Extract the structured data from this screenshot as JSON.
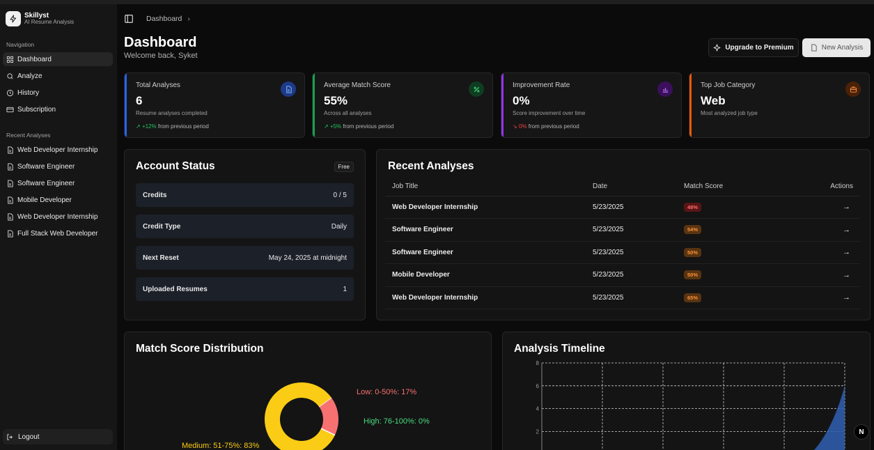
{
  "brand": {
    "name": "Skillyst",
    "subtitle": "AI Resume Analysis"
  },
  "sidebar": {
    "nav_label": "Navigation",
    "nav_items": [
      {
        "label": "Dashboard",
        "icon": "dashboard-grid-icon",
        "active": true
      },
      {
        "label": "Analyze",
        "icon": "search-icon"
      },
      {
        "label": "History",
        "icon": "history-icon"
      },
      {
        "label": "Subscription",
        "icon": "credit-card-icon"
      }
    ],
    "recent_label": "Recent Analyses",
    "recent_items": [
      "Web Developer Internship",
      "Software Engineer",
      "Software Engineer",
      "Mobile Developer",
      "Web Developer Internship",
      "Full Stack Web Developer"
    ],
    "logout": "Logout"
  },
  "header": {
    "breadcrumb": "Dashboard",
    "title": "Dashboard",
    "welcome": "Welcome back, Syket",
    "upgrade_label": "Upgrade to Premium",
    "new_analysis_label": "New Analysis"
  },
  "stats": [
    {
      "label": "Total Analyses",
      "value": "6",
      "desc": "Resume analyses completed",
      "change": "+12%",
      "change_suffix": "from previous period",
      "trend": "up",
      "accent": "#2563eb",
      "icon": "document-icon"
    },
    {
      "label": "Average Match Score",
      "value": "55%",
      "desc": "Across all analyses",
      "change": "+5%",
      "change_suffix": "from previous period",
      "trend": "up",
      "accent": "#16a34a",
      "icon": "percent-icon"
    },
    {
      "label": "Improvement Rate",
      "value": "0%",
      "desc": "Score improvement over time",
      "change": "0%",
      "change_suffix": "from previous period",
      "trend": "down",
      "accent": "#9333ea",
      "icon": "bar-chart-icon"
    },
    {
      "label": "Top Job Category",
      "value": "Web",
      "desc": "Most analyzed job type",
      "accent": "#ea580c",
      "icon": "briefcase-icon"
    }
  ],
  "account": {
    "title": "Account Status",
    "plan": "Free",
    "rows": [
      {
        "key": "Credits",
        "value": "0 / 5"
      },
      {
        "key": "Credit Type",
        "value": "Daily"
      },
      {
        "key": "Next Reset",
        "value": "May 24, 2025 at midnight"
      },
      {
        "key": "Uploaded Resumes",
        "value": "1"
      }
    ]
  },
  "recent": {
    "title": "Recent Analyses",
    "columns": [
      "Job Title",
      "Date",
      "Match Score",
      "Actions"
    ],
    "rows": [
      {
        "title": "Web Developer Internship",
        "date": "5/23/2025",
        "score": "48%",
        "color": "red"
      },
      {
        "title": "Software Engineer",
        "date": "5/23/2025",
        "score": "54%",
        "color": "orange"
      },
      {
        "title": "Software Engineer",
        "date": "5/23/2025",
        "score": "50%",
        "color": "orange"
      },
      {
        "title": "Mobile Developer",
        "date": "5/23/2025",
        "score": "50%",
        "color": "orange"
      },
      {
        "title": "Web Developer Internship",
        "date": "5/23/2025",
        "score": "65%",
        "color": "orange"
      }
    ]
  },
  "distribution": {
    "title": "Match Score Distribution",
    "labels": {
      "low": "Low: 0-50%: 17%",
      "high": "High: 76-100%: 0%",
      "medium": "Medium: 51-75%: 83%"
    },
    "colors": {
      "low": "#f87171",
      "high": "#4ade80",
      "medium": "#facc15"
    }
  },
  "timeline": {
    "title": "Analysis Timeline",
    "y_ticks": [
      "8",
      "6",
      "4",
      "2"
    ]
  },
  "chart_data": [
    {
      "type": "pie",
      "title": "Match Score Distribution",
      "categories": [
        "Low: 0-50%",
        "Medium: 51-75%",
        "High: 76-100%"
      ],
      "values": [
        17,
        83,
        0
      ]
    },
    {
      "type": "area",
      "title": "Analysis Timeline",
      "ylim": [
        0,
        8
      ],
      "y_ticks": [
        2,
        4,
        6,
        8
      ],
      "grid": true,
      "series": [
        {
          "values": [
            0,
            0,
            0,
            0,
            0,
            6
          ]
        }
      ]
    }
  ],
  "footer_badge": "N"
}
